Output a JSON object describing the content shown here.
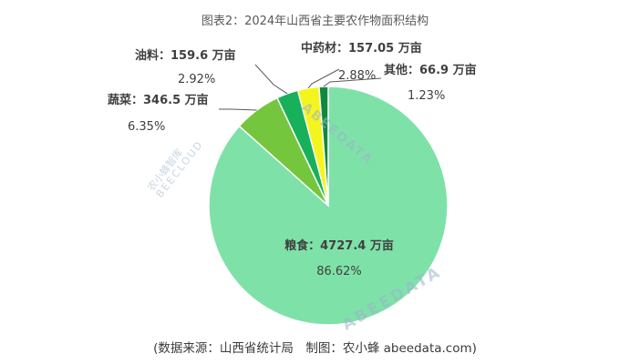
{
  "title": "图表2：2024年山西省主要农作物面积结构",
  "source": "(数据来源：山西省统计局　制图：农小蜂 abeedata.com)",
  "watermark": {
    "brand_cn": "农小蜂智库",
    "brand_en": "BEECLOUD",
    "site": "ABEEDATA"
  },
  "colors": {
    "grain": "#7ee2a8",
    "vegetables": "#74c63c",
    "oil": "#16b15a",
    "herbs": "#f5f51e",
    "other": "#0f8a3c",
    "leader": "#595959"
  },
  "chart_data": {
    "type": "pie",
    "unit": "万亩",
    "slices": [
      {
        "key": "grain",
        "name": "粮食",
        "value": 4727.4,
        "value_label": "4727.4 万亩",
        "percent": 86.62,
        "percent_label": "86.62%"
      },
      {
        "key": "vegetables",
        "name": "蔬菜",
        "value": 346.5,
        "value_label": "346.5 万亩",
        "percent": 6.35,
        "percent_label": "6.35%"
      },
      {
        "key": "oil",
        "name": "油料",
        "value": 159.6,
        "value_label": "159.6 万亩",
        "percent": 2.92,
        "percent_label": "2.92%"
      },
      {
        "key": "herbs",
        "name": "中药材",
        "value": 157.05,
        "value_label": "157.05 万亩",
        "percent": 2.88,
        "percent_label": "2.88%"
      },
      {
        "key": "other",
        "name": "其他",
        "value": 66.9,
        "value_label": "66.9 万亩",
        "percent": 1.23,
        "percent_label": "1.23%"
      }
    ]
  }
}
